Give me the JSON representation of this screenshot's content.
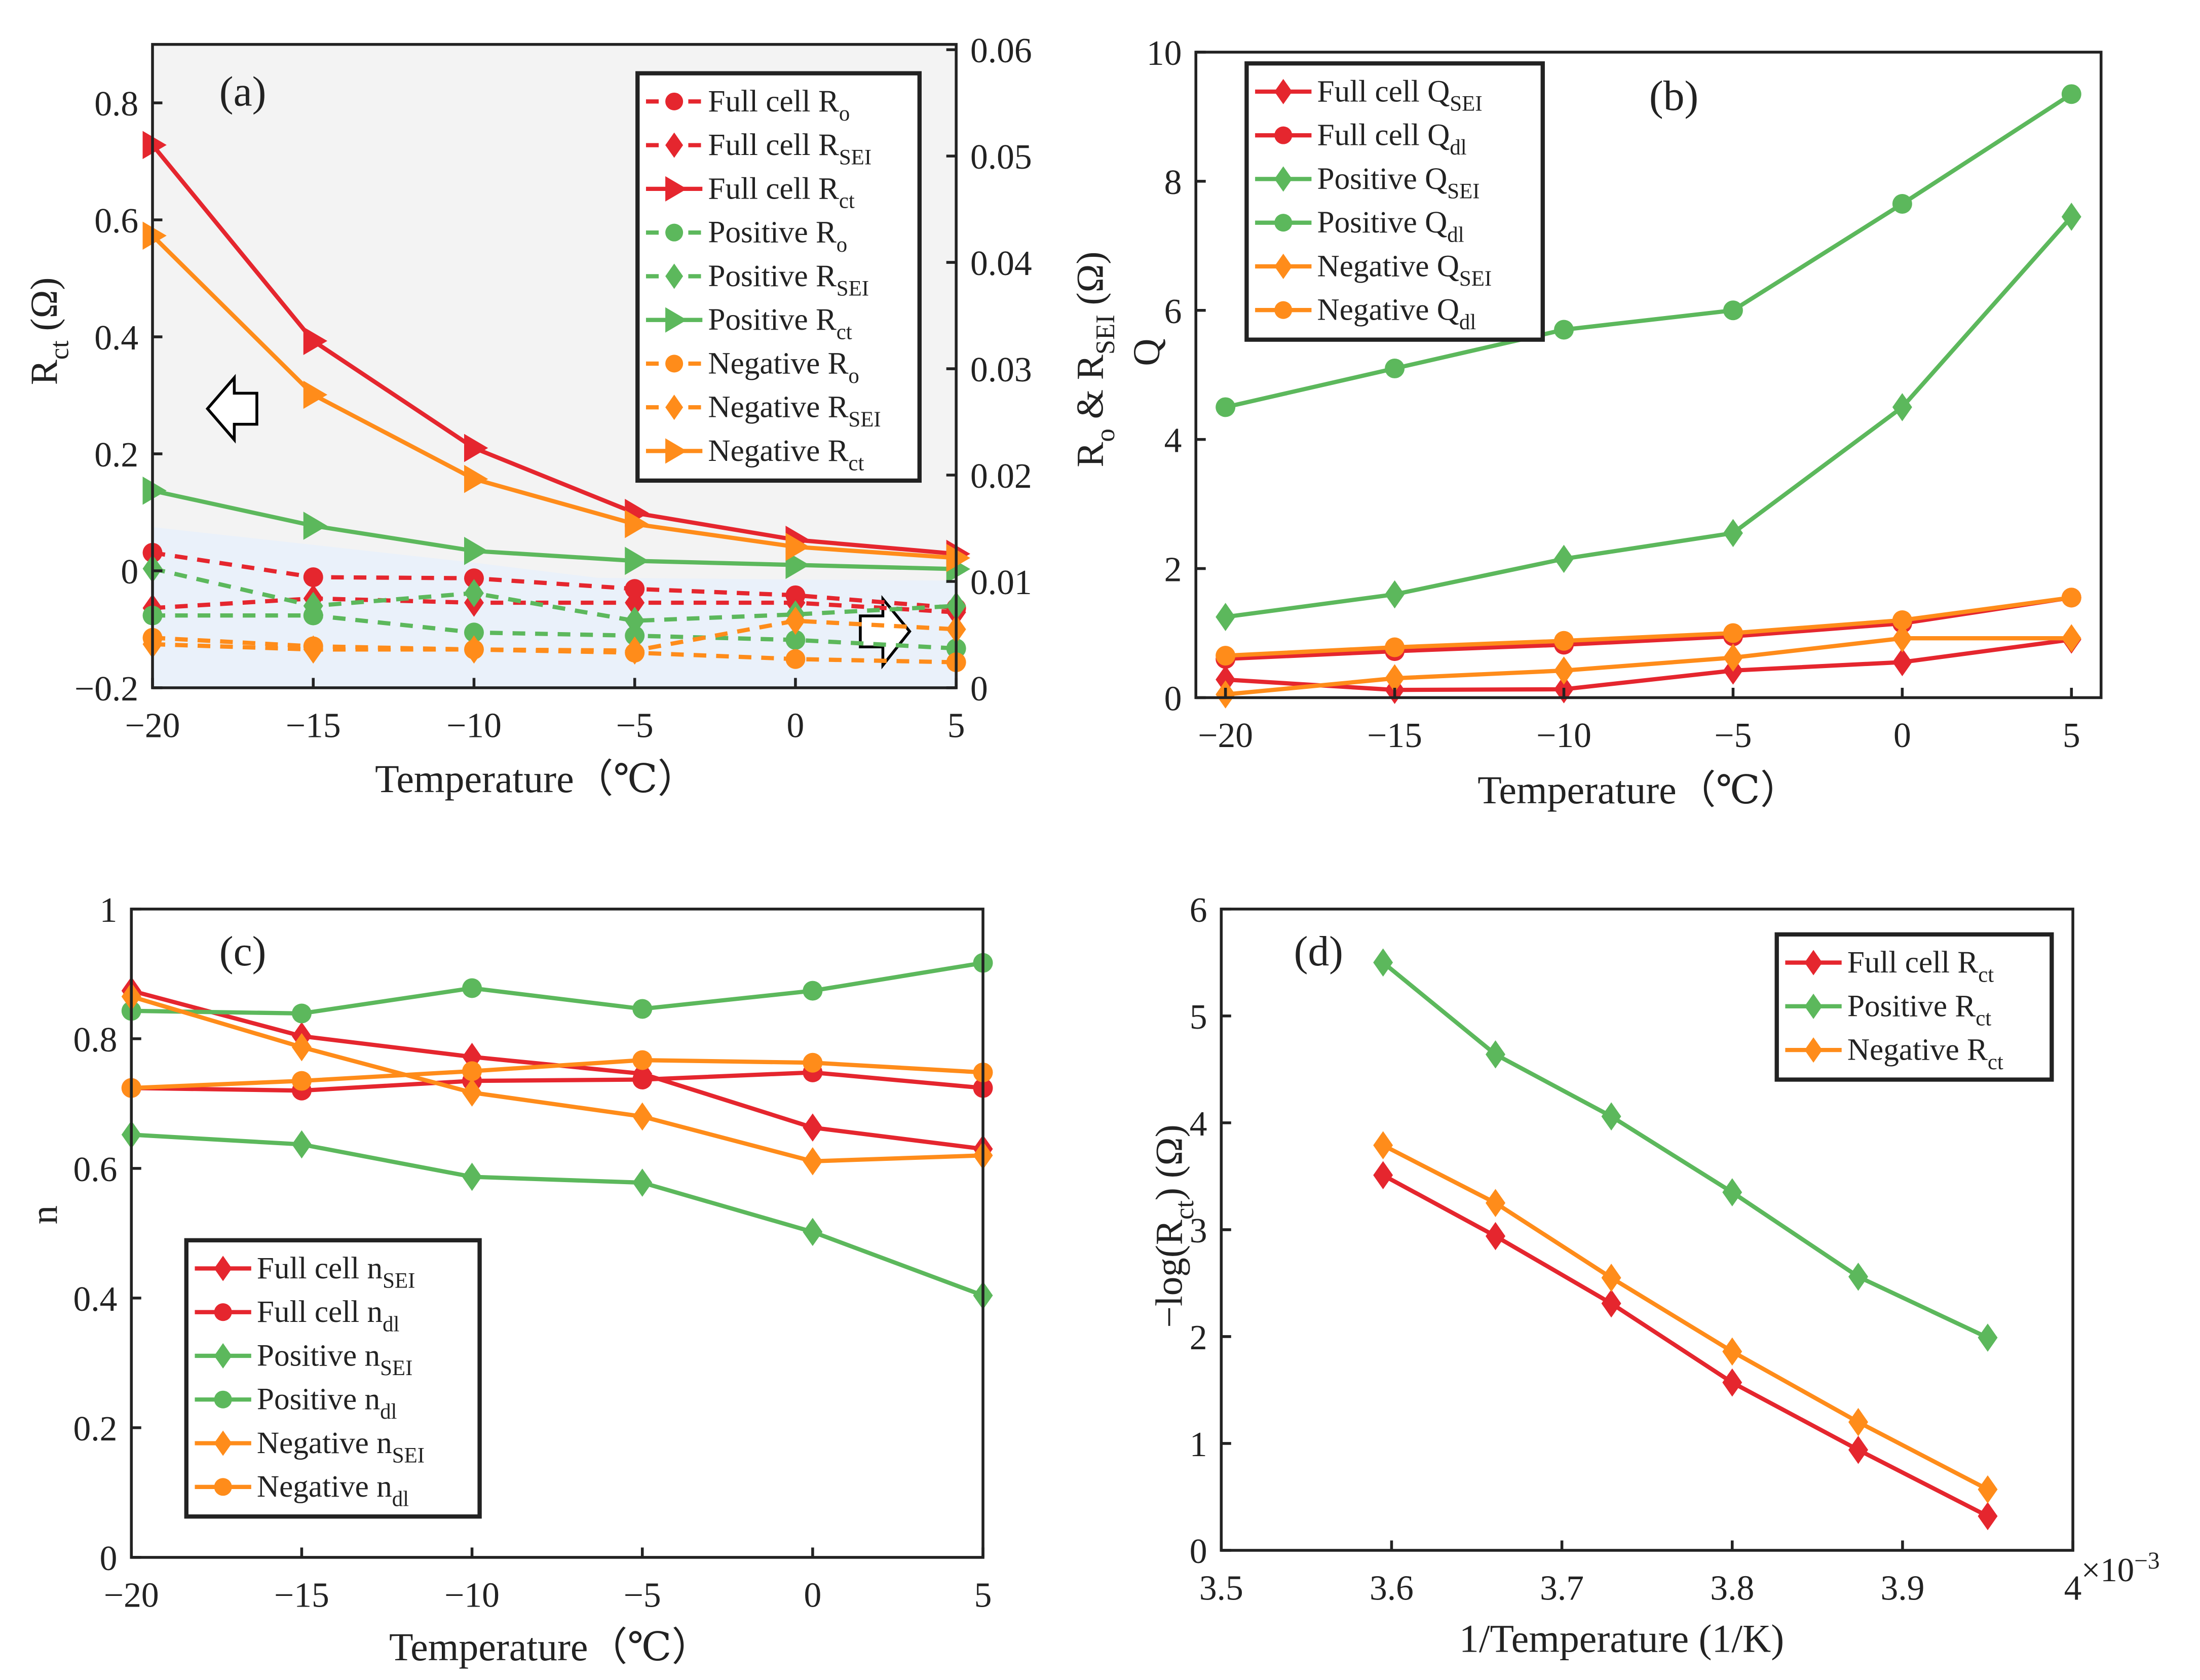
{
  "colors": {
    "red": "#e5262e",
    "green": "#5cb85c",
    "orange": "#ff8c1a"
  },
  "chart_data": [
    {
      "panel": "(a)",
      "type": "line",
      "xlabel": [
        {
          "t": "Temperature（℃）"
        }
      ],
      "ylabel": [
        {
          "t": "R"
        },
        {
          "t": "ct",
          "sub": true
        },
        {
          "t": " (Ω)"
        }
      ],
      "y2label": [
        {
          "t": "R"
        },
        {
          "t": "o",
          "sub": true
        },
        {
          "t": " & R"
        },
        {
          "t": "SEI",
          "sub": true
        },
        {
          "t": " (Ω)"
        }
      ],
      "x": [
        -20,
        -15,
        -10,
        -5,
        0,
        5
      ],
      "xlim": [
        -20,
        5
      ],
      "xticks": [
        -20,
        -15,
        -10,
        -5,
        0,
        5
      ],
      "xtick_labels": [
        "−20",
        "−15",
        "−10",
        "−5",
        "0",
        "5"
      ],
      "ylim": [
        -0.2,
        0.9
      ],
      "yticks": [
        -0.2,
        0,
        0.2,
        0.4,
        0.6,
        0.8
      ],
      "ytick_labels": [
        "−0.2",
        "0",
        "0.2",
        "0.4",
        "0.6",
        "0.8"
      ],
      "y2lim": [
        0,
        0.0605
      ],
      "y2ticks": [
        0,
        0.01,
        0.02,
        0.03,
        0.04,
        0.05,
        0.06
      ],
      "y2tick_labels": [
        "0",
        "0.01",
        "0.02",
        "0.03",
        "0.04",
        "0.05",
        "0.06"
      ],
      "series": [
        {
          "label": [
            {
              "t": "Full cell R"
            },
            {
              "t": "o",
              "sub": true
            }
          ],
          "color": "red",
          "marker": "circle",
          "dash": true,
          "axis": "right",
          "values": [
            0.0127,
            0.0104,
            0.0103,
            0.0093,
            0.0087,
            0.0075
          ]
        },
        {
          "label": [
            {
              "t": "Full cell R"
            },
            {
              "t": "SEI",
              "sub": true
            }
          ],
          "color": "red",
          "marker": "diamond",
          "dash": true,
          "axis": "right",
          "values": [
            0.0075,
            0.0084,
            0.008,
            0.008,
            0.008,
            0.0071
          ]
        },
        {
          "label": [
            {
              "t": "Full cell R"
            },
            {
              "t": "ct",
              "sub": true
            }
          ],
          "color": "red",
          "marker": "triangle",
          "dash": false,
          "axis": "left",
          "values": [
            0.728,
            0.393,
            0.21,
            0.099,
            0.053,
            0.029
          ]
        },
        {
          "label": [
            {
              "t": "Positive R"
            },
            {
              "t": "o",
              "sub": true
            }
          ],
          "color": "green",
          "marker": "circle",
          "dash": true,
          "axis": "right",
          "values": [
            0.0068,
            0.0068,
            0.0052,
            0.0049,
            0.0045,
            0.0037
          ]
        },
        {
          "label": [
            {
              "t": "Positive R"
            },
            {
              "t": "SEI",
              "sub": true
            }
          ],
          "color": "green",
          "marker": "diamond",
          "dash": true,
          "axis": "right",
          "values": [
            0.0112,
            0.0077,
            0.0089,
            0.0063,
            0.0069,
            0.0077
          ]
        },
        {
          "label": [
            {
              "t": "Positive R"
            },
            {
              "t": "ct",
              "sub": true
            }
          ],
          "color": "green",
          "marker": "triangle",
          "dash": false,
          "axis": "left",
          "values": [
            0.137,
            0.077,
            0.034,
            0.017,
            0.01,
            0.003
          ]
        },
        {
          "label": [
            {
              "t": "Negative R"
            },
            {
              "t": "o",
              "sub": true
            }
          ],
          "color": "orange",
          "marker": "circle",
          "dash": true,
          "axis": "right",
          "values": [
            0.0047,
            0.0039,
            0.0036,
            0.0033,
            0.0027,
            0.0024
          ]
        },
        {
          "label": [
            {
              "t": "Negative R"
            },
            {
              "t": "SEI",
              "sub": true
            }
          ],
          "color": "orange",
          "marker": "diamond",
          "dash": true,
          "axis": "right",
          "values": [
            0.0041,
            0.0036,
            0.0036,
            0.0035,
            0.0063,
            0.0055
          ]
        },
        {
          "label": [
            {
              "t": "Negative R"
            },
            {
              "t": "ct",
              "sub": true
            }
          ],
          "color": "orange",
          "marker": "triangle",
          "dash": false,
          "axis": "left",
          "values": [
            0.573,
            0.301,
            0.157,
            0.08,
            0.041,
            0.022
          ]
        }
      ],
      "legend_position": "top-right"
    },
    {
      "panel": "(b)",
      "type": "line",
      "xlabel": [
        {
          "t": "Temperature（℃）"
        }
      ],
      "ylabel": [
        {
          "t": "Q"
        }
      ],
      "x": [
        -20,
        -15,
        -10,
        -5,
        0,
        5
      ],
      "xlim": [
        -20.875,
        5.875
      ],
      "xticks": [
        -20,
        -15,
        -10,
        -5,
        0,
        5
      ],
      "xtick_labels": [
        "−20",
        "−15",
        "−10",
        "−5",
        "0",
        "5"
      ],
      "ylim": [
        0,
        10
      ],
      "yticks": [
        0,
        2,
        4,
        6,
        8,
        10
      ],
      "ytick_labels": [
        "0",
        "2",
        "4",
        "6",
        "8",
        "10"
      ],
      "series": [
        {
          "label": [
            {
              "t": "Full cell Q"
            },
            {
              "t": "SEI",
              "sub": true
            }
          ],
          "color": "red",
          "marker": "diamond",
          "dash": false,
          "axis": "left",
          "values": [
            0.28,
            0.12,
            0.13,
            0.42,
            0.55,
            0.9
          ]
        },
        {
          "label": [
            {
              "t": "Full cell Q"
            },
            {
              "t": "dl",
              "sub": true
            }
          ],
          "color": "red",
          "marker": "circle",
          "dash": false,
          "axis": "left",
          "values": [
            0.6,
            0.72,
            0.82,
            0.95,
            1.15,
            1.55
          ]
        },
        {
          "label": [
            {
              "t": "Positive Q"
            },
            {
              "t": "SEI",
              "sub": true
            }
          ],
          "color": "green",
          "marker": "diamond",
          "dash": false,
          "axis": "left",
          "values": [
            1.25,
            1.6,
            2.15,
            2.55,
            4.5,
            7.45
          ]
        },
        {
          "label": [
            {
              "t": "Positive Q"
            },
            {
              "t": "dl",
              "sub": true
            }
          ],
          "color": "green",
          "marker": "circle",
          "dash": false,
          "axis": "left",
          "values": [
            4.5,
            5.1,
            5.7,
            6.0,
            7.65,
            9.35
          ]
        },
        {
          "label": [
            {
              "t": "Negative Q"
            },
            {
              "t": "SEI",
              "sub": true
            }
          ],
          "color": "orange",
          "marker": "diamond",
          "dash": false,
          "axis": "left",
          "values": [
            0.05,
            0.3,
            0.42,
            0.62,
            0.92,
            0.92
          ]
        },
        {
          "label": [
            {
              "t": "Negative Q"
            },
            {
              "t": "dl",
              "sub": true
            }
          ],
          "color": "orange",
          "marker": "circle",
          "dash": false,
          "axis": "left",
          "values": [
            0.65,
            0.78,
            0.88,
            1.0,
            1.2,
            1.55
          ]
        }
      ],
      "legend_position": "top-left"
    },
    {
      "panel": "(c)",
      "type": "line",
      "xlabel": [
        {
          "t": "Temperature（℃）"
        }
      ],
      "ylabel": [
        {
          "t": "n"
        }
      ],
      "x": [
        -20,
        -15,
        -10,
        -5,
        0,
        5
      ],
      "xlim": [
        -20,
        5
      ],
      "xticks": [
        -20,
        -15,
        -10,
        -5,
        0,
        5
      ],
      "xtick_labels": [
        "−20",
        "−15",
        "−10",
        "−5",
        "0",
        "5"
      ],
      "ylim": [
        0,
        1
      ],
      "yticks": [
        0,
        0.2,
        0.4,
        0.6,
        0.8,
        1
      ],
      "ytick_labels": [
        "0",
        "0.2",
        "0.4",
        "0.6",
        "0.8",
        "1"
      ],
      "series": [
        {
          "label": [
            {
              "t": "Full cell n"
            },
            {
              "t": "SEI",
              "sub": true
            }
          ],
          "color": "red",
          "marker": "diamond",
          "dash": false,
          "axis": "left",
          "values": [
            0.874,
            0.804,
            0.772,
            0.746,
            0.663,
            0.63
          ]
        },
        {
          "label": [
            {
              "t": "Full cell n"
            },
            {
              "t": "dl",
              "sub": true
            }
          ],
          "color": "red",
          "marker": "circle",
          "dash": false,
          "axis": "left",
          "values": [
            0.724,
            0.72,
            0.735,
            0.737,
            0.748,
            0.724
          ]
        },
        {
          "label": [
            {
              "t": "Positive n"
            },
            {
              "t": "SEI",
              "sub": true
            }
          ],
          "color": "green",
          "marker": "diamond",
          "dash": false,
          "axis": "left",
          "values": [
            0.652,
            0.637,
            0.587,
            0.578,
            0.502,
            0.404
          ]
        },
        {
          "label": [
            {
              "t": "Positive n"
            },
            {
              "t": "dl",
              "sub": true
            }
          ],
          "color": "green",
          "marker": "circle",
          "dash": false,
          "axis": "left",
          "values": [
            0.843,
            0.839,
            0.878,
            0.846,
            0.874,
            0.917
          ]
        },
        {
          "label": [
            {
              "t": "Negative n"
            },
            {
              "t": "SEI",
              "sub": true
            }
          ],
          "color": "orange",
          "marker": "diamond",
          "dash": false,
          "axis": "left",
          "values": [
            0.865,
            0.787,
            0.717,
            0.68,
            0.611,
            0.62
          ]
        },
        {
          "label": [
            {
              "t": "Negative n"
            },
            {
              "t": "dl",
              "sub": true
            }
          ],
          "color": "orange",
          "marker": "circle",
          "dash": false,
          "axis": "left",
          "values": [
            0.724,
            0.735,
            0.75,
            0.767,
            0.763,
            0.748
          ]
        }
      ],
      "legend_position": "bottom-left"
    },
    {
      "panel": "(d)",
      "type": "line",
      "xlabel": [
        {
          "t": "1/Temperature (1/K)"
        }
      ],
      "ylabel": [
        {
          "t": "−log(R"
        },
        {
          "t": "ct",
          "sub": true
        },
        {
          "t": ") (Ω)"
        }
      ],
      "x_multiplier": "×10",
      "x_multiplier_exp": "−3",
      "x": [
        3.595,
        3.661,
        3.729,
        3.8,
        3.874,
        3.95
      ],
      "xlim": [
        3.5,
        4.0
      ],
      "xticks": [
        3.5,
        3.6,
        3.7,
        3.8,
        3.9,
        4.0
      ],
      "xtick_labels": [
        "3.5",
        "3.6",
        "3.7",
        "3.8",
        "3.9",
        "4"
      ],
      "ylim": [
        0,
        6
      ],
      "yticks": [
        0,
        1,
        2,
        3,
        4,
        5,
        6
      ],
      "ytick_labels": [
        "0",
        "1",
        "2",
        "3",
        "4",
        "5",
        "6"
      ],
      "series": [
        {
          "label": [
            {
              "t": "Full cell R"
            },
            {
              "t": "ct",
              "sub": true
            }
          ],
          "color": "red",
          "marker": "diamond",
          "dash": false,
          "axis": "left",
          "values": [
            3.51,
            2.94,
            2.31,
            1.57,
            0.94,
            0.32
          ]
        },
        {
          "label": [
            {
              "t": "Positive R"
            },
            {
              "t": "ct",
              "sub": true
            }
          ],
          "color": "green",
          "marker": "diamond",
          "dash": false,
          "axis": "left",
          "values": [
            5.5,
            4.64,
            4.06,
            3.35,
            2.56,
            1.99
          ]
        },
        {
          "label": [
            {
              "t": "Negative R"
            },
            {
              "t": "ct",
              "sub": true
            }
          ],
          "color": "orange",
          "marker": "diamond",
          "dash": false,
          "axis": "left",
          "values": [
            3.79,
            3.25,
            2.55,
            1.86,
            1.2,
            0.57
          ]
        }
      ],
      "legend_position": "top-right"
    }
  ]
}
